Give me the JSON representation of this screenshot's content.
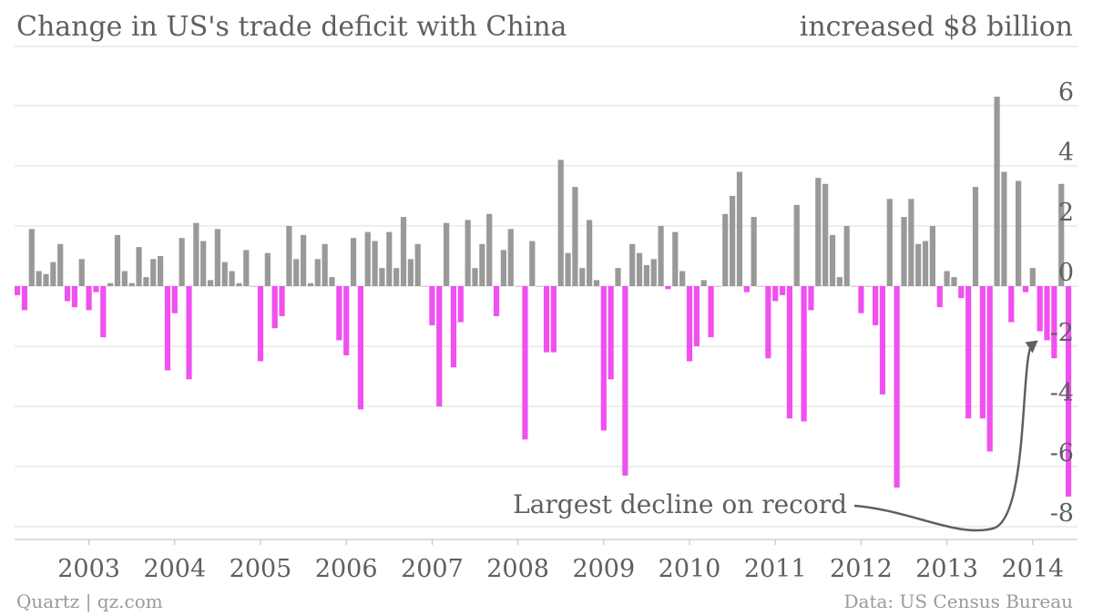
{
  "header": {
    "title": "Change in US's trade deficit with China",
    "right_note": "increased $8 billion"
  },
  "footer": {
    "source_left": "Quartz | qz.com",
    "source_right": "Data: US Census Bureau"
  },
  "chart_data": {
    "type": "bar",
    "ylabel": "",
    "xlabel": "",
    "ylim": [
      -8.2,
      6.4
    ],
    "yticks": [
      6,
      4,
      2,
      0,
      -2,
      -4,
      -6,
      -8
    ],
    "ytick_labels": [
      "6",
      "4",
      "2",
      "0",
      "-2",
      "-4",
      "-6",
      "-8"
    ],
    "xtick_labels": [
      "2003",
      "2004",
      "2005",
      "2006",
      "2007",
      "2008",
      "2009",
      "2010",
      "2011",
      "2012",
      "2013",
      "2014"
    ],
    "start": "2002-03",
    "interval": "monthly",
    "grid": "horizontal",
    "colors": {
      "positive": "#999999",
      "negative": "#f050f0",
      "grid": "#dddddd",
      "axis": "#bbbbbb",
      "annotation": "#5f5f5f"
    },
    "values": [
      -0.3,
      -0.8,
      1.9,
      0.5,
      0.4,
      0.8,
      1.4,
      -0.5,
      -0.7,
      0.9,
      -0.8,
      -0.2,
      -1.7,
      0.1,
      1.7,
      0.5,
      0.1,
      1.3,
      0.3,
      0.9,
      1.0,
      -2.8,
      -0.9,
      1.6,
      -3.1,
      2.1,
      1.5,
      0.2,
      1.9,
      0.8,
      0.5,
      0.1,
      1.2,
      0.0,
      -2.5,
      1.1,
      -1.4,
      -1.0,
      2.0,
      0.9,
      1.7,
      0.1,
      0.9,
      1.4,
      0.3,
      -1.8,
      -2.3,
      1.6,
      -4.1,
      1.8,
      1.5,
      0.6,
      1.8,
      0.6,
      2.3,
      0.9,
      1.4,
      0.0,
      -1.3,
      -4.0,
      2.1,
      -2.7,
      -1.2,
      2.2,
      0.6,
      1.4,
      2.4,
      -1.0,
      1.2,
      1.9,
      0.0,
      -5.1,
      1.5,
      0.0,
      -2.2,
      -2.2,
      4.2,
      1.1,
      3.3,
      0.6,
      2.2,
      0.2,
      -4.8,
      -3.1,
      0.6,
      -6.3,
      1.4,
      1.1,
      0.7,
      0.9,
      2.0,
      -0.1,
      1.8,
      0.5,
      -2.5,
      -2.0,
      0.2,
      -1.7,
      0.0,
      2.4,
      3.0,
      3.8,
      -0.2,
      2.3,
      0.0,
      -2.4,
      -0.5,
      -0.3,
      -4.4,
      2.7,
      -4.5,
      -0.8,
      3.6,
      3.4,
      1.7,
      0.3,
      2.0,
      0.0,
      -0.9,
      0.0,
      -1.3,
      -3.6,
      2.9,
      -6.7,
      2.3,
      2.9,
      1.4,
      1.5,
      2.0,
      -0.7,
      0.5,
      0.3,
      -0.4,
      -4.4,
      3.3,
      -4.4,
      -5.5,
      6.3,
      3.8,
      -1.2,
      3.5,
      -0.2,
      0.6,
      -1.5,
      -1.8,
      -2.4,
      3.4,
      -7.0
    ],
    "annotations": [
      {
        "text": "Largest decline on record",
        "target_index": 143
      }
    ]
  }
}
